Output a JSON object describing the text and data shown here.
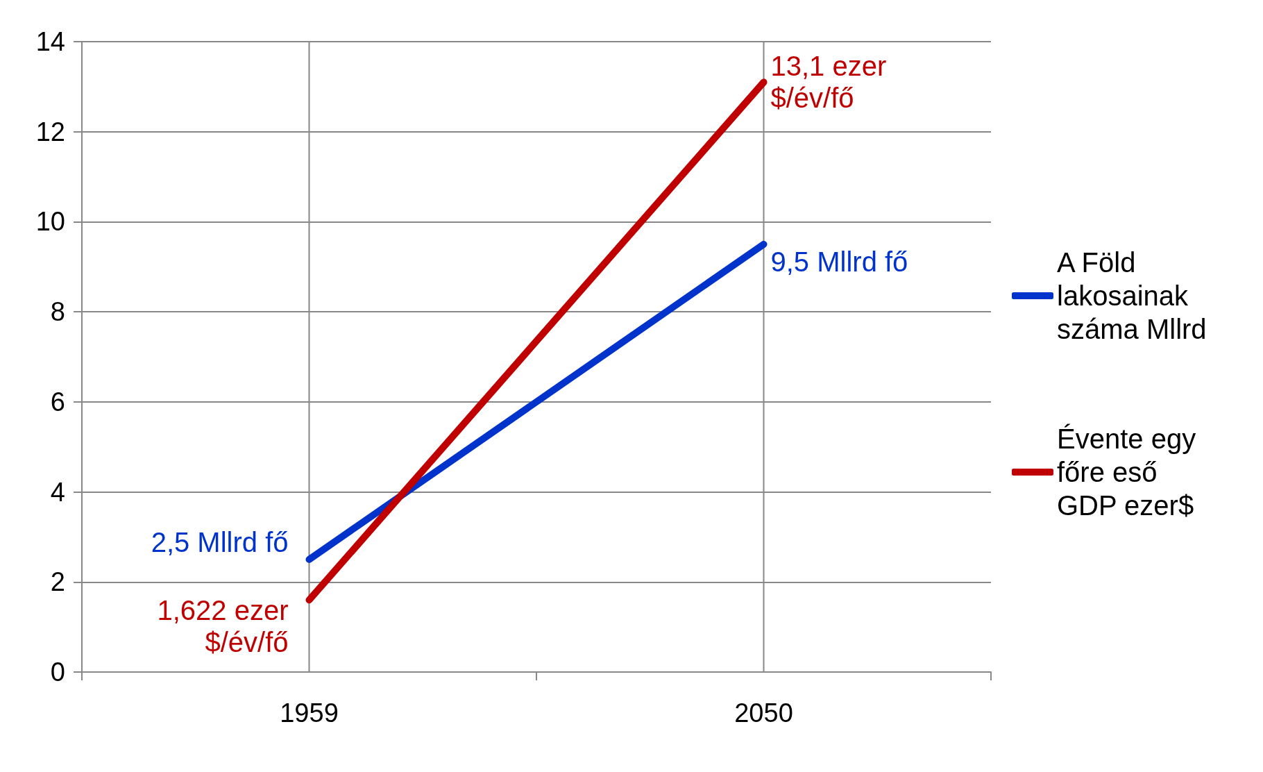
{
  "chart_data": {
    "type": "line",
    "categories": [
      "1959",
      "2050"
    ],
    "series": [
      {
        "name": "A Föld lakosainak száma Mllrd",
        "color": "#0033cc",
        "values": [
          2.5,
          9.5
        ]
      },
      {
        "name": "Évente egy főre eső GDP ezer$",
        "color": "#c00000",
        "values": [
          1.6,
          13.1
        ]
      }
    ],
    "annotations": [
      {
        "text": "2,5 Mllrd fő",
        "x": "1959",
        "y": 2.5
      },
      {
        "text": "9,5 Mllrd fő",
        "x": "2050",
        "y": 9.5
      },
      {
        "text": "1,622 ezer $/év/fő",
        "x": "1959",
        "y": 1.6
      },
      {
        "text": "13,1 ezer $/év/fő",
        "x": "2050",
        "y": 13.1
      }
    ],
    "ylim": [
      0,
      14
    ],
    "yticks": [
      0,
      2,
      4,
      6,
      8,
      10,
      12,
      14
    ],
    "grid": true,
    "legend": "right",
    "marker": "none",
    "line_style": "solid"
  }
}
